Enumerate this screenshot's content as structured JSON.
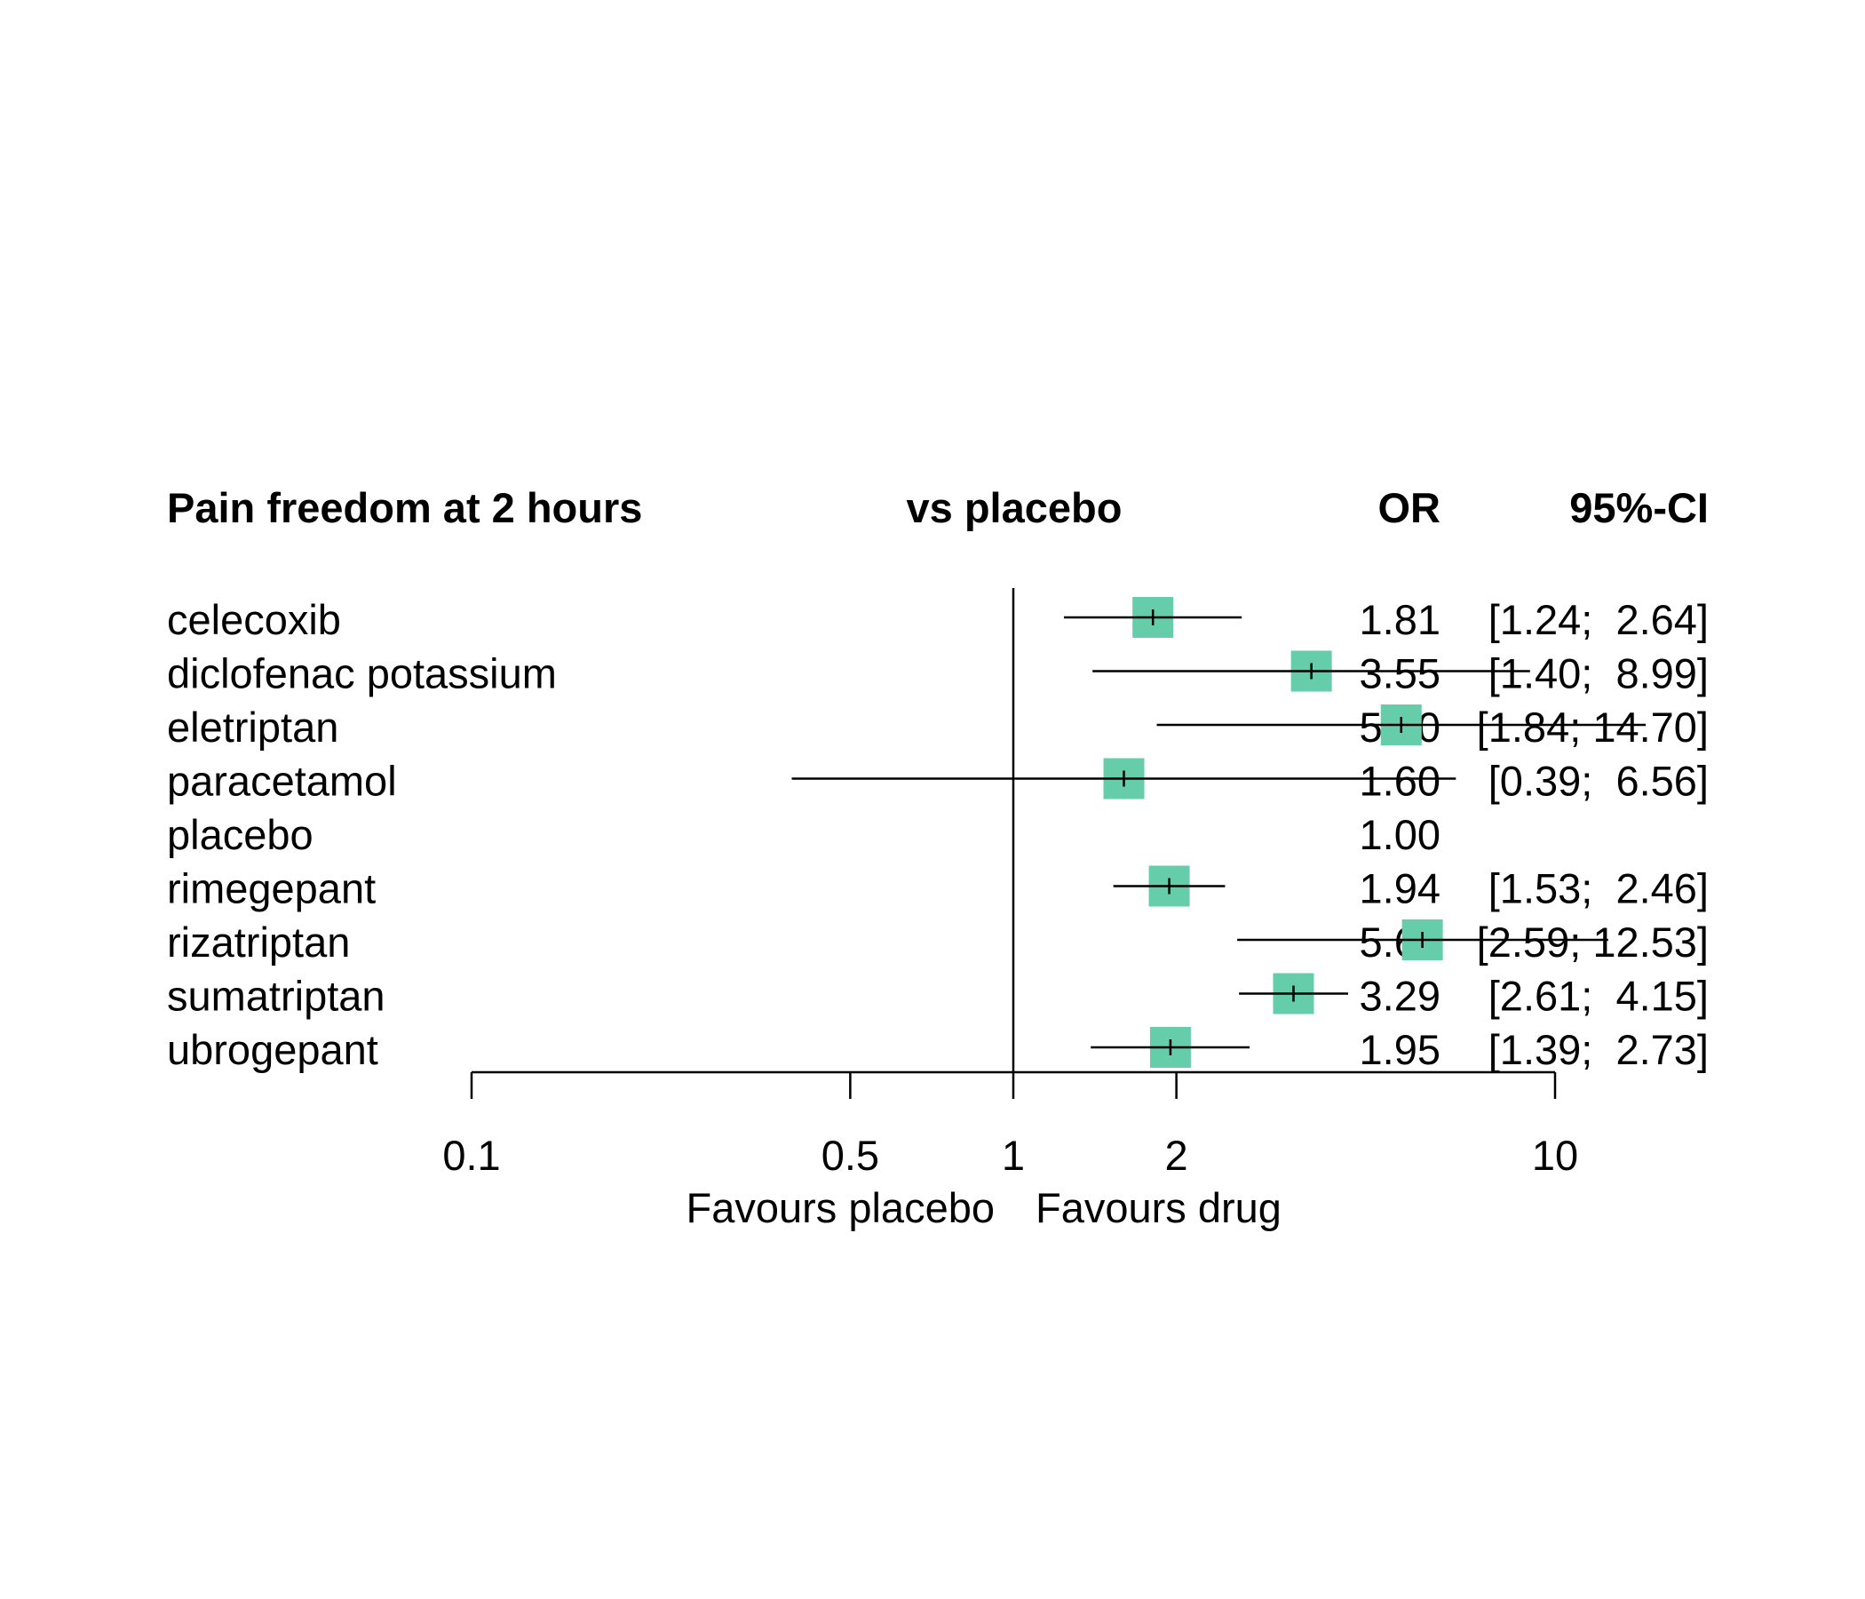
{
  "chart_data": {
    "type": "forest",
    "headers": {
      "study": "Pain freedom at 2 hours",
      "effect": "vs placebo",
      "or": "OR",
      "ci": "95%-CI"
    },
    "rows": [
      {
        "label": "celecoxib",
        "or": 1.81,
        "lower": 1.24,
        "upper": 2.64,
        "or_text": "1.81",
        "ci_text": "[1.24;  2.64]"
      },
      {
        "label": "diclofenac potassium",
        "or": 3.55,
        "lower": 1.4,
        "upper": 8.99,
        "or_text": "3.55",
        "ci_text": "[1.40;  8.99]"
      },
      {
        "label": "eletriptan",
        "or": 5.2,
        "lower": 1.84,
        "upper": 14.7,
        "or_text": "5.20",
        "ci_text": "[1.84; 14.70]"
      },
      {
        "label": "paracetamol",
        "or": 1.6,
        "lower": 0.39,
        "upper": 6.56,
        "or_text": "1.60",
        "ci_text": "[0.39;  6.56]"
      },
      {
        "label": "placebo",
        "or": 1.0,
        "lower": null,
        "upper": null,
        "or_text": "1.00",
        "ci_text": ""
      },
      {
        "label": "rimegepant",
        "or": 1.94,
        "lower": 1.53,
        "upper": 2.46,
        "or_text": "1.94",
        "ci_text": "[1.53;  2.46]"
      },
      {
        "label": "rizatriptan",
        "or": 5.69,
        "lower": 2.59,
        "upper": 12.53,
        "or_text": "5.69",
        "ci_text": "[2.59; 12.53]"
      },
      {
        "label": "sumatriptan",
        "or": 3.29,
        "lower": 2.61,
        "upper": 4.15,
        "or_text": "3.29",
        "ci_text": "[2.61;  4.15]"
      },
      {
        "label": "ubrogepant",
        "or": 1.95,
        "lower": 1.39,
        "upper": 2.73,
        "or_text": "1.95",
        "ci_text": "[1.39;  2.73]"
      }
    ],
    "x_scale": "log",
    "x_ticks": [
      0.1,
      0.5,
      1,
      2,
      10
    ],
    "x_tick_labels": [
      "0.1",
      "0.5",
      "1",
      "2",
      "10"
    ],
    "xlim": [
      0.1,
      10
    ],
    "reference_line": 1,
    "favours_left": "Favours placebo",
    "favours_right": "Favours drug",
    "square_color": "#66cdaa",
    "grid": false
  }
}
